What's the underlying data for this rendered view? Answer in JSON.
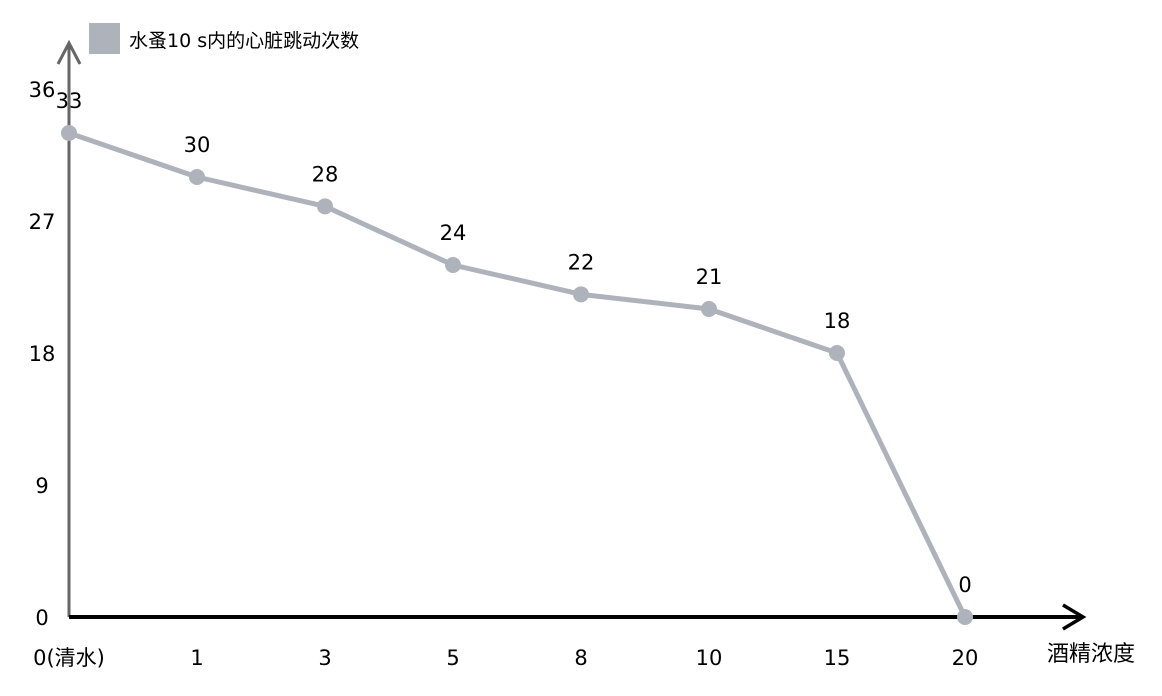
{
  "chart_data": {
    "type": "line",
    "legend": {
      "label": "水蚤10 s内的心脏跳动次数",
      "placement": "top-left",
      "color": "#AEB2BB"
    },
    "xlabel": "酒精浓度",
    "ylabel": "",
    "categories": [
      "0(清水)",
      "1",
      "3",
      "5",
      "8",
      "10",
      "15",
      "20"
    ],
    "series": [
      {
        "name": "水蚤10 s内的心脏跳动次数",
        "values": [
          33,
          30,
          28,
          24,
          22,
          21,
          18,
          0
        ],
        "color": "#AEB2BB"
      }
    ],
    "yticks": [
      0,
      9,
      18,
      27,
      36
    ],
    "ylim": [
      0,
      36
    ],
    "data_labels": true,
    "grid": false,
    "colors": {
      "y_axis": "#666666",
      "x_axis": "#000000",
      "series": "#AEB2BB"
    }
  }
}
